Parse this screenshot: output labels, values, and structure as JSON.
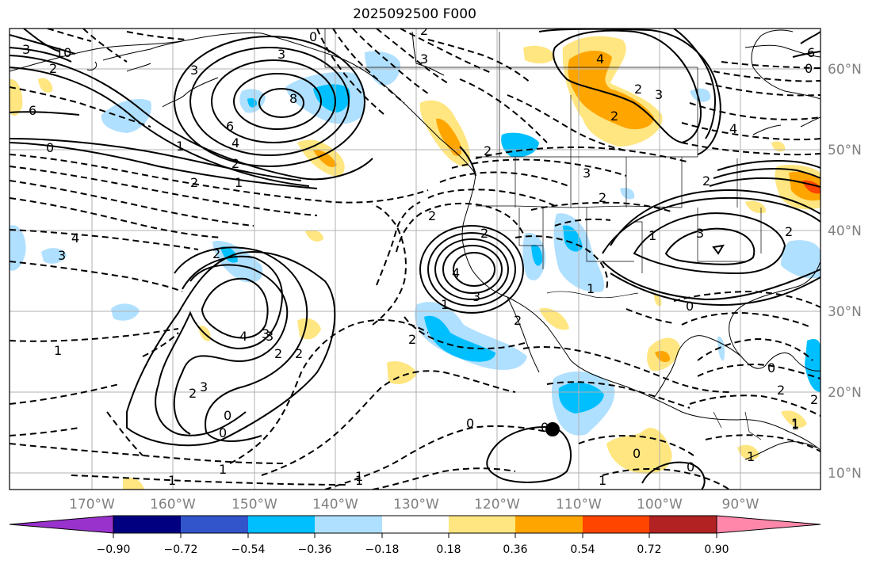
{
  "title": "2025092500 F000",
  "map": {
    "lat_labels": [
      "60°N",
      "50°N",
      "40°N",
      "30°N",
      "20°N",
      "10°N"
    ],
    "lon_labels": [
      "170°W",
      "160°W",
      "150°W",
      "140°W",
      "130°W",
      "120°W",
      "110°W",
      "100°W",
      "90°W"
    ],
    "contour_labels": [
      "0",
      "3",
      "10",
      "2",
      "6",
      "3",
      "6",
      "8",
      "0",
      "3",
      "2",
      "4",
      "3",
      "4",
      "0",
      "6",
      "4",
      "2",
      "2",
      "1",
      "1",
      "2",
      "2",
      "3",
      "2",
      "4",
      "2",
      "1",
      "0",
      "3",
      "2",
      "3",
      "2",
      "3",
      "4",
      "3",
      "1",
      "1",
      "2",
      "2",
      "2",
      "2",
      "3",
      "2",
      "3",
      "4",
      "3",
      "2",
      "1",
      "0",
      "0",
      "1",
      "0",
      "2",
      "0",
      "2",
      "1",
      "2",
      "1",
      "0",
      "1",
      "0",
      "0",
      "1",
      "2",
      "1",
      "1",
      "1"
    ],
    "marker": "storm-center-marker",
    "colors": {
      "land_line": "#000000",
      "grid": "#b0b0b0",
      "positive_contour": "#000000",
      "negative_contour": "#000000"
    }
  },
  "colorbar": {
    "colors": [
      "#9932cc",
      "#000080",
      "#3355cc",
      "#00bfff",
      "#b0e0ff",
      "#ffffff",
      "#ffe680",
      "#ffa500",
      "#ff4500",
      "#b22222",
      "#ff88aa"
    ],
    "tick_labels": [
      "−0.90",
      "−0.72",
      "−0.54",
      "−0.36",
      "−0.18",
      "0.18",
      "0.36",
      "0.54",
      "0.72",
      "0.90"
    ]
  }
}
